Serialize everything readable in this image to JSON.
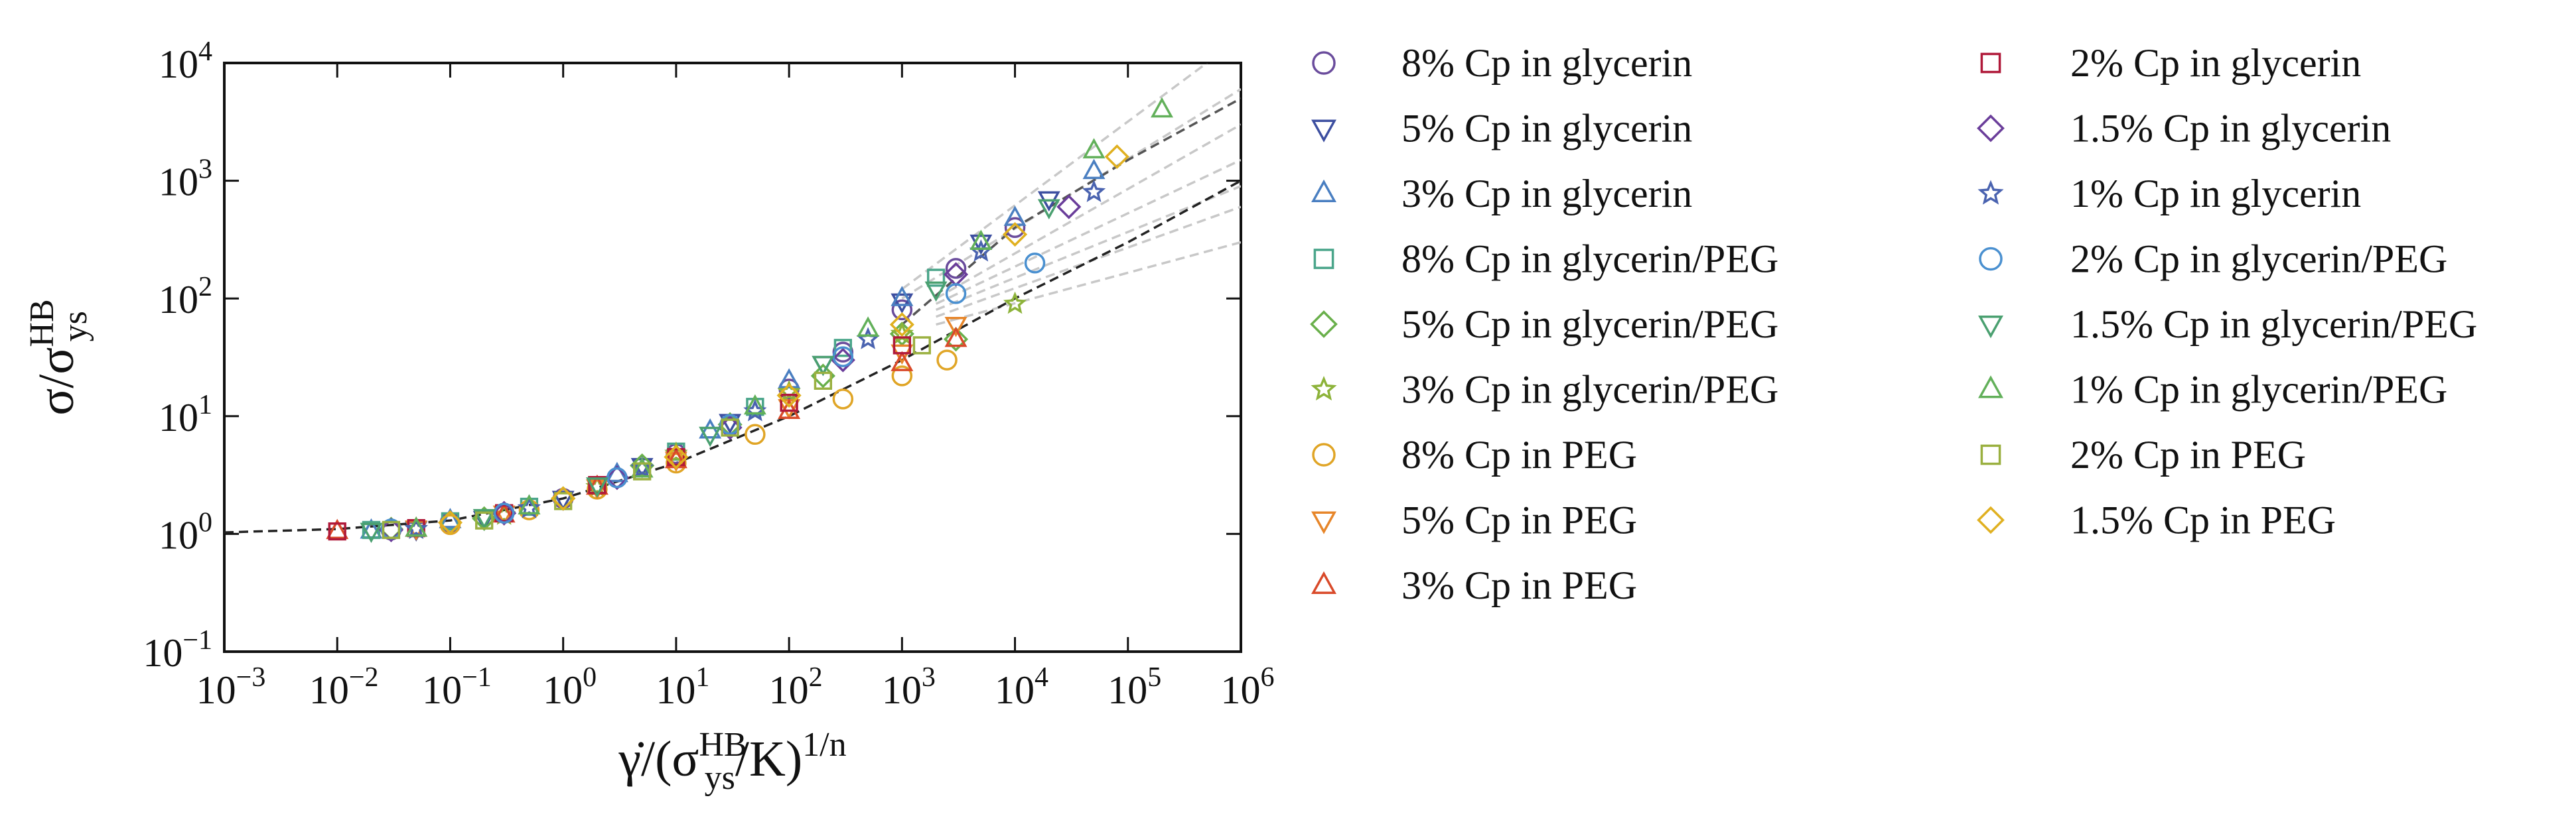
{
  "chart_data": {
    "type": "scatter",
    "xlabel": {
      "pre": "γ̇/(σ",
      "sub": "ys",
      "sup": "HB",
      "post": "/K)",
      "post_sup": "1/n"
    },
    "ylabel": {
      "pre": "σ/σ",
      "sub": "ys",
      "sup": "HB"
    },
    "xscale": "log",
    "yscale": "log",
    "xlim": [
      0.001,
      1000000
    ],
    "ylim": [
      0.1,
      10000
    ],
    "xticks": [
      {
        "value": 0.001,
        "label": "10",
        "sup": "−3"
      },
      {
        "value": 0.01,
        "label": "10",
        "sup": "−2"
      },
      {
        "value": 0.1,
        "label": "10",
        "sup": "−1"
      },
      {
        "value": 1,
        "label": "10",
        "sup": "0"
      },
      {
        "value": 10,
        "label": "10",
        "sup": "1"
      },
      {
        "value": 100,
        "label": "10",
        "sup": "2"
      },
      {
        "value": 1000,
        "label": "10",
        "sup": "3"
      },
      {
        "value": 10000,
        "label": "10",
        "sup": "4"
      },
      {
        "value": 100000,
        "label": "10",
        "sup": "5"
      },
      {
        "value": 1000000,
        "label": "10",
        "sup": "6"
      }
    ],
    "yticks": [
      {
        "value": 0.1,
        "label": "10",
        "sup": "−1"
      },
      {
        "value": 1,
        "label": "10",
        "sup": "0"
      },
      {
        "value": 10,
        "label": "10",
        "sup": "1"
      },
      {
        "value": 100,
        "label": "10",
        "sup": "2"
      },
      {
        "value": 1000,
        "label": "10",
        "sup": "3"
      },
      {
        "value": 10000,
        "label": "10",
        "sup": "4"
      }
    ],
    "fit_lines": [
      {
        "color": "#c8c8c8",
        "x": [
          2000,
          1000000
        ],
        "y": [
          60,
          300
        ]
      },
      {
        "color": "#c8c8c8",
        "x": [
          2000,
          1000000
        ],
        "y": [
          70,
          600
        ]
      },
      {
        "color": "#c8c8c8",
        "x": [
          2000,
          1000000
        ],
        "y": [
          80,
          900
        ]
      },
      {
        "color": "#c8c8c8",
        "x": [
          2000,
          1000000
        ],
        "y": [
          90,
          1500
        ]
      },
      {
        "color": "#c8c8c8",
        "x": [
          2000,
          1000000
        ],
        "y": [
          100,
          3000
        ]
      },
      {
        "color": "#c8c8c8",
        "x": [
          1000,
          1000000
        ],
        "y": [
          100,
          6000
        ]
      },
      {
        "color": "#c8c8c8",
        "x": [
          1000,
          500000
        ],
        "y": [
          120,
          10000
        ]
      },
      {
        "color": "#222222",
        "x": [
          0.001,
          0.01,
          0.1,
          1,
          10,
          100,
          1000,
          10000,
          100000,
          1000000
        ],
        "y": [
          1.03,
          1.1,
          1.3,
          2,
          4,
          10,
          30,
          100,
          300,
          1000
        ]
      },
      {
        "color": "#555555",
        "x": [
          1000,
          10000,
          100000,
          1000000
        ],
        "y": [
          60,
          400,
          1500,
          5000
        ]
      }
    ],
    "series": [
      {
        "name": "8% Cp in glycerin",
        "color": "#6a4c9c",
        "marker": "circle",
        "x": [
          0.03,
          0.1,
          0.3,
          1,
          3,
          10,
          30,
          100,
          300,
          1000,
          3000,
          10000
        ],
        "values": [
          1.08,
          1.25,
          1.5,
          2,
          3,
          4.8,
          8.5,
          17,
          35,
          80,
          180,
          400
        ]
      },
      {
        "name": "5% Cp in glycerin",
        "color": "#3d4fa0",
        "marker": "down",
        "x": [
          0.05,
          0.2,
          1,
          5,
          30,
          200,
          1000,
          5000,
          20000
        ],
        "values": [
          1.1,
          1.35,
          2,
          3.8,
          9,
          28,
          95,
          300,
          700
        ]
      },
      {
        "name": "3% Cp in glycerin",
        "color": "#4a7fc1",
        "marker": "up",
        "x": [
          0.02,
          0.1,
          0.5,
          3,
          20,
          100,
          1000,
          10000,
          50000
        ],
        "values": [
          1.06,
          1.3,
          1.7,
          3.2,
          7.5,
          20,
          100,
          480,
          1200
        ]
      },
      {
        "name": "8% Cp in glycerin/PEG",
        "color": "#4aa58a",
        "marker": "square",
        "x": [
          0.02,
          0.1,
          0.5,
          2,
          10,
          50,
          300,
          2000
        ],
        "values": [
          1.08,
          1.28,
          1.7,
          2.6,
          5,
          12,
          38,
          150
        ]
      },
      {
        "name": "5% Cp in glycerin/PEG",
        "color": "#6ab04c",
        "marker": "diamond",
        "x": [
          0.03,
          0.2,
          1,
          5,
          30,
          200,
          1000,
          3000
        ],
        "values": [
          1.1,
          1.35,
          2,
          3.8,
          8.5,
          22,
          50,
          45
        ]
      },
      {
        "name": "3% Cp in glycerin/PEG",
        "color": "#8db33a",
        "marker": "star",
        "x": [
          0.05,
          0.3,
          2,
          10,
          100,
          1000,
          10000
        ],
        "values": [
          1.1,
          1.45,
          2.5,
          4.8,
          16,
          50,
          90
        ]
      },
      {
        "name": "8% Cp in PEG",
        "color": "#e0a526",
        "marker": "circle",
        "x": [
          0.1,
          0.5,
          2,
          10,
          50,
          300,
          1000,
          2500
        ],
        "values": [
          1.2,
          1.6,
          2.4,
          4,
          7,
          14,
          22,
          30
        ]
      },
      {
        "name": "5% Cp in PEG",
        "color": "#e7862a",
        "marker": "down",
        "x": [
          0.05,
          0.3,
          2,
          10,
          100,
          1000,
          3000
        ],
        "values": [
          1.12,
          1.5,
          2.5,
          4.3,
          12,
          35,
          60
        ]
      },
      {
        "name": "3% Cp in PEG",
        "color": "#d94a2a",
        "marker": "up",
        "x": [
          0.01,
          0.05,
          0.3,
          2,
          10,
          100,
          1000,
          3000
        ],
        "values": [
          1.05,
          1.1,
          1.45,
          2.5,
          4.2,
          11,
          28,
          45
        ]
      },
      {
        "name": "2% Cp in glycerin",
        "color": "#b01a3a",
        "marker": "square",
        "x": [
          0.01,
          0.05,
          0.3,
          2,
          10,
          100,
          1000
        ],
        "values": [
          1.05,
          1.12,
          1.5,
          2.6,
          4.5,
          13,
          40
        ]
      },
      {
        "name": "1.5% Cp in glycerin",
        "color": "#6a3d9a",
        "marker": "diamond",
        "x": [
          0.03,
          0.3,
          3,
          30,
          300,
          3000,
          30000
        ],
        "values": [
          1.08,
          1.5,
          3,
          8,
          30,
          160,
          600
        ]
      },
      {
        "name": "1% Cp in glycerin",
        "color": "#4a63b0",
        "marker": "star",
        "x": [
          0.05,
          0.5,
          5,
          50,
          500,
          5000,
          50000
        ],
        "values": [
          1.1,
          1.65,
          3.6,
          11,
          45,
          250,
          800
        ]
      },
      {
        "name": "2% Cp in glycerin/PEG",
        "color": "#4a90d0",
        "marker": "circle",
        "x": [
          0.03,
          0.3,
          3,
          30,
          300,
          3000,
          15000
        ],
        "values": [
          1.1,
          1.5,
          3,
          8.5,
          32,
          110,
          200
        ]
      },
      {
        "name": "1.5% Cp in glycerin/PEG",
        "color": "#4aa070",
        "marker": "down",
        "x": [
          0.02,
          0.2,
          2,
          20,
          200,
          2000,
          20000
        ],
        "values": [
          1.07,
          1.4,
          2.6,
          7,
          28,
          120,
          600
        ]
      },
      {
        "name": "1% Cp in glycerin/PEG",
        "color": "#62b05a",
        "marker": "up",
        "x": [
          0.05,
          0.5,
          5,
          50,
          500,
          5000,
          50000,
          200000
        ],
        "values": [
          1.1,
          1.7,
          3.5,
          12,
          55,
          300,
          1800,
          4000
        ]
      },
      {
        "name": "2% Cp in PEG",
        "color": "#9ab040",
        "marker": "square",
        "x": [
          0.03,
          0.2,
          1,
          5,
          30,
          200,
          1500
        ],
        "values": [
          1.08,
          1.3,
          1.9,
          3.4,
          8,
          20,
          40
        ]
      },
      {
        "name": "1.5% Cp in PEG",
        "color": "#e0b020",
        "marker": "diamond",
        "x": [
          0.1,
          1,
          10,
          100,
          1000,
          10000,
          80000
        ],
        "values": [
          1.25,
          2,
          4.5,
          15,
          60,
          350,
          1600
        ]
      }
    ]
  }
}
